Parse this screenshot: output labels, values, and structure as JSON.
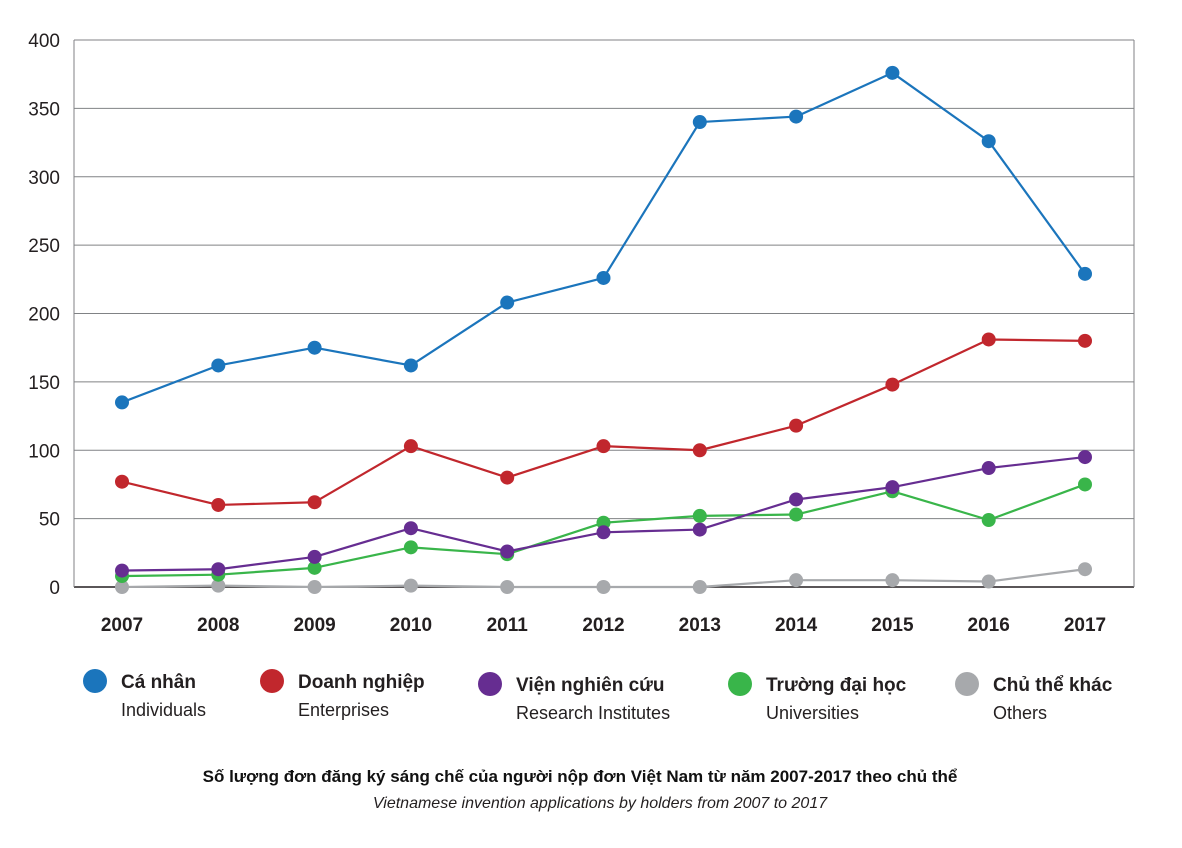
{
  "chart_data": {
    "type": "line",
    "title": "Số lượng đơn đăng ký sáng chế của người nộp đơn Việt Nam từ năm 2007-2017 theo chủ thể",
    "subtitle": "Vietnamese invention applications by holders from 2007 to 2017",
    "xlabel": "",
    "ylabel": "",
    "categories": [
      "2007",
      "2008",
      "2009",
      "2010",
      "2011",
      "2012",
      "2013",
      "2014",
      "2015",
      "2016",
      "2017"
    ],
    "ylim": [
      0,
      400
    ],
    "yticks": [
      "0",
      "50",
      "100",
      "150",
      "200",
      "250",
      "300",
      "350",
      "400"
    ],
    "grid": true,
    "legend_position": "bottom",
    "series": [
      {
        "name": "Cá nhân",
        "name_en": "Individuals",
        "color": "#1b75bc",
        "values": [
          135,
          162,
          175,
          162,
          208,
          226,
          340,
          344,
          376,
          326,
          229
        ]
      },
      {
        "name": "Doanh nghiệp",
        "name_en": "Enterprises",
        "color": "#c1272d",
        "values": [
          77,
          60,
          62,
          103,
          80,
          103,
          100,
          118,
          148,
          181,
          180
        ]
      },
      {
        "name": "Viện nghiên cứu",
        "name_en": "Research Institutes",
        "color": "#662d91",
        "values": [
          12,
          13,
          22,
          43,
          26,
          40,
          42,
          64,
          73,
          87,
          95
        ]
      },
      {
        "name": "Trường đại học",
        "name_en": "Universities",
        "color": "#39b54a",
        "values": [
          8,
          9,
          14,
          29,
          24,
          47,
          52,
          53,
          70,
          49,
          75
        ]
      },
      {
        "name": "Chủ thể khác",
        "name_en": "Others",
        "color": "#a7a9ac",
        "values": [
          0,
          1,
          0,
          1,
          0,
          0,
          0,
          5,
          5,
          4,
          13
        ]
      }
    ]
  }
}
